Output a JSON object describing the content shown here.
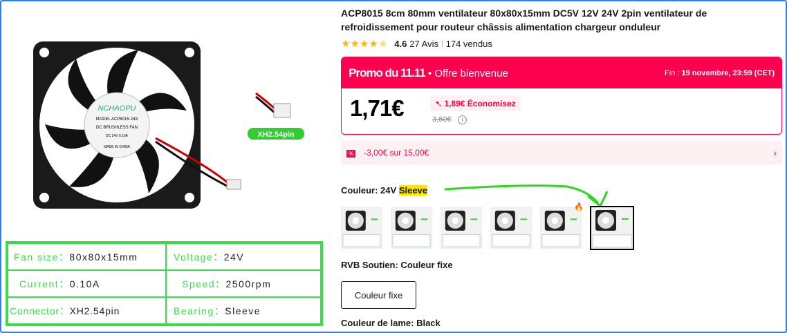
{
  "product": {
    "title": "ACP8015 8cm 80mm ventilateur 80x80x15mm DC5V 12V 24V 2pin ventilateur de refroidissement pour routeur châssis alimentation chargeur onduleur",
    "rating": "4.6",
    "reviews": "27 Avis",
    "sold": "174 vendus",
    "stars": 4.6
  },
  "image": {
    "brand": "NCHAOPU",
    "model": "MODEL ACP8015-24S",
    "label": "DC BRUSHLESS FAN",
    "rating": "DC 24V 0.10A",
    "origin": "MADE IN CHINA",
    "connector_badge": "XH2.54pin"
  },
  "spec": [
    {
      "k": "Fan size：",
      "v": "80x80x15mm"
    },
    {
      "k": "Voltage：",
      "v": "24V"
    },
    {
      "k": "Current：",
      "v": "0.10A"
    },
    {
      "k": "Speed：",
      "v": "2500rpm"
    },
    {
      "k": "Connector：",
      "v": "XH2.54pin"
    },
    {
      "k": "Bearing：",
      "v": "Sleeve"
    }
  ],
  "promo": {
    "name": "Promo du 11.11",
    "offer": "• Offre bienvenue",
    "end_label": "Fin :",
    "end": "19 novembre, 23:59 (CET)",
    "price": "1,71€",
    "save": "1,89€ Économisez",
    "old_price": "3,60€",
    "color": "#fd0050"
  },
  "coupon": {
    "tag": "%",
    "text": "-3,00€ sur 15,00€"
  },
  "color": {
    "label": "Couleur: 24V",
    "value": "Sleeve",
    "selected_index": 5,
    "count": 6
  },
  "rvb": {
    "label": "RVB Soutien: Couleur fixe",
    "option": "Couleur fixe"
  },
  "blade": {
    "label": "Couleur de lame: Black"
  }
}
